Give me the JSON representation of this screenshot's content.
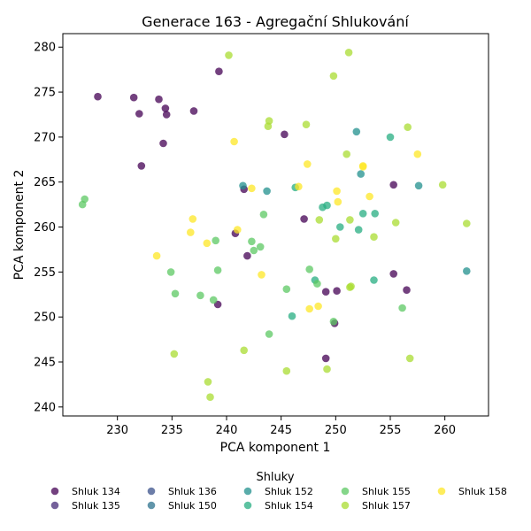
{
  "chart_data": {
    "type": "scatter",
    "title": "Generace 163 - Agregační Shlukování",
    "xlabel": "PCA komponent 1",
    "ylabel": "PCA komponent 2",
    "xlim": [
      225,
      264
    ],
    "ylim": [
      239,
      281.5
    ],
    "xticks": [
      230,
      235,
      240,
      245,
      250,
      255,
      260
    ],
    "yticks": [
      240,
      245,
      250,
      255,
      260,
      265,
      270,
      275,
      280
    ],
    "grid": false,
    "legend": {
      "title": "Shluky",
      "placement": "bottom"
    },
    "series": [
      {
        "name": "Shluk 134",
        "color": "#440154",
        "points": [
          [
            228.2,
            274.5
          ],
          [
            231.5,
            274.4
          ],
          [
            232.0,
            272.6
          ],
          [
            233.8,
            274.2
          ],
          [
            234.4,
            273.2
          ],
          [
            234.5,
            272.5
          ],
          [
            237.0,
            272.9
          ],
          [
            239.3,
            277.3
          ],
          [
            234.2,
            269.3
          ],
          [
            232.2,
            266.8
          ],
          [
            241.6,
            264.2
          ],
          [
            245.3,
            270.3
          ],
          [
            247.1,
            260.9
          ],
          [
            240.8,
            259.3
          ],
          [
            241.9,
            256.8
          ],
          [
            239.2,
            251.4
          ],
          [
            249.1,
            252.8
          ],
          [
            250.1,
            252.9
          ],
          [
            249.1,
            245.4
          ],
          [
            249.9,
            249.3
          ],
          [
            255.3,
            264.7
          ],
          [
            255.3,
            254.8
          ],
          [
            256.5,
            253.0
          ]
        ]
      },
      {
        "name": "Shluk 135",
        "color": "#472c7a",
        "points": []
      },
      {
        "name": "Shluk 136",
        "color": "#3b518b",
        "points": []
      },
      {
        "name": "Shluk 150",
        "color": "#2c718e",
        "points": []
      },
      {
        "name": "Shluk 152",
        "color": "#21908d",
        "points": [
          [
            241.5,
            264.6
          ],
          [
            243.7,
            264.0
          ],
          [
            251.9,
            270.6
          ],
          [
            252.3,
            265.9
          ],
          [
            257.6,
            264.6
          ],
          [
            262.0,
            255.1
          ]
        ]
      },
      {
        "name": "Shluk 154",
        "color": "#27ad81",
        "points": [
          [
            246.3,
            264.4
          ],
          [
            248.8,
            262.2
          ],
          [
            249.2,
            262.4
          ],
          [
            250.4,
            260.0
          ],
          [
            252.5,
            261.5
          ],
          [
            252.1,
            259.7
          ],
          [
            253.6,
            261.5
          ],
          [
            255.0,
            270.0
          ],
          [
            248.1,
            254.1
          ],
          [
            246.0,
            250.1
          ],
          [
            253.5,
            254.1
          ]
        ]
      },
      {
        "name": "Shluk 155",
        "color": "#5cc863",
        "points": [
          [
            226.8,
            262.5
          ],
          [
            227.0,
            263.1
          ],
          [
            234.9,
            255.0
          ],
          [
            235.3,
            252.6
          ],
          [
            237.6,
            252.4
          ],
          [
            238.8,
            251.9
          ],
          [
            239.0,
            258.5
          ],
          [
            239.2,
            255.2
          ],
          [
            242.3,
            258.4
          ],
          [
            242.5,
            257.4
          ],
          [
            243.1,
            257.8
          ],
          [
            243.4,
            261.4
          ],
          [
            247.6,
            255.3
          ],
          [
            245.5,
            253.1
          ],
          [
            248.3,
            253.7
          ],
          [
            243.9,
            248.1
          ],
          [
            249.8,
            249.5
          ],
          [
            256.1,
            251.0
          ]
        ]
      },
      {
        "name": "Shluk 157",
        "color": "#aadc32",
        "points": [
          [
            240.2,
            279.1
          ],
          [
            251.2,
            279.4
          ],
          [
            249.8,
            276.8
          ],
          [
            243.9,
            271.8
          ],
          [
            243.8,
            271.2
          ],
          [
            247.3,
            271.4
          ],
          [
            256.6,
            271.1
          ],
          [
            251.0,
            268.1
          ],
          [
            248.5,
            260.8
          ],
          [
            250.0,
            258.7
          ],
          [
            251.3,
            260.8
          ],
          [
            251.3,
            253.3
          ],
          [
            251.4,
            253.4
          ],
          [
            253.5,
            258.9
          ],
          [
            255.5,
            260.5
          ],
          [
            259.8,
            264.7
          ],
          [
            262.0,
            260.4
          ],
          [
            241.6,
            246.3
          ],
          [
            245.5,
            244.0
          ],
          [
            238.3,
            242.8
          ],
          [
            238.5,
            241.1
          ],
          [
            235.2,
            245.9
          ],
          [
            249.2,
            244.2
          ],
          [
            256.8,
            245.4
          ]
        ]
      },
      {
        "name": "Shluk 158",
        "color": "#fde725",
        "points": [
          [
            240.7,
            269.5
          ],
          [
            242.3,
            264.3
          ],
          [
            247.4,
            267.0
          ],
          [
            246.6,
            264.5
          ],
          [
            250.1,
            264.0
          ],
          [
            250.2,
            262.8
          ],
          [
            252.5,
            266.8
          ],
          [
            252.5,
            266.7
          ],
          [
            253.1,
            263.4
          ],
          [
            257.5,
            268.1
          ],
          [
            236.9,
            260.9
          ],
          [
            236.7,
            259.4
          ],
          [
            238.2,
            258.2
          ],
          [
            241.0,
            259.7
          ],
          [
            233.6,
            256.8
          ],
          [
            243.2,
            254.7
          ],
          [
            247.6,
            250.9
          ],
          [
            248.4,
            251.2
          ]
        ]
      }
    ]
  }
}
